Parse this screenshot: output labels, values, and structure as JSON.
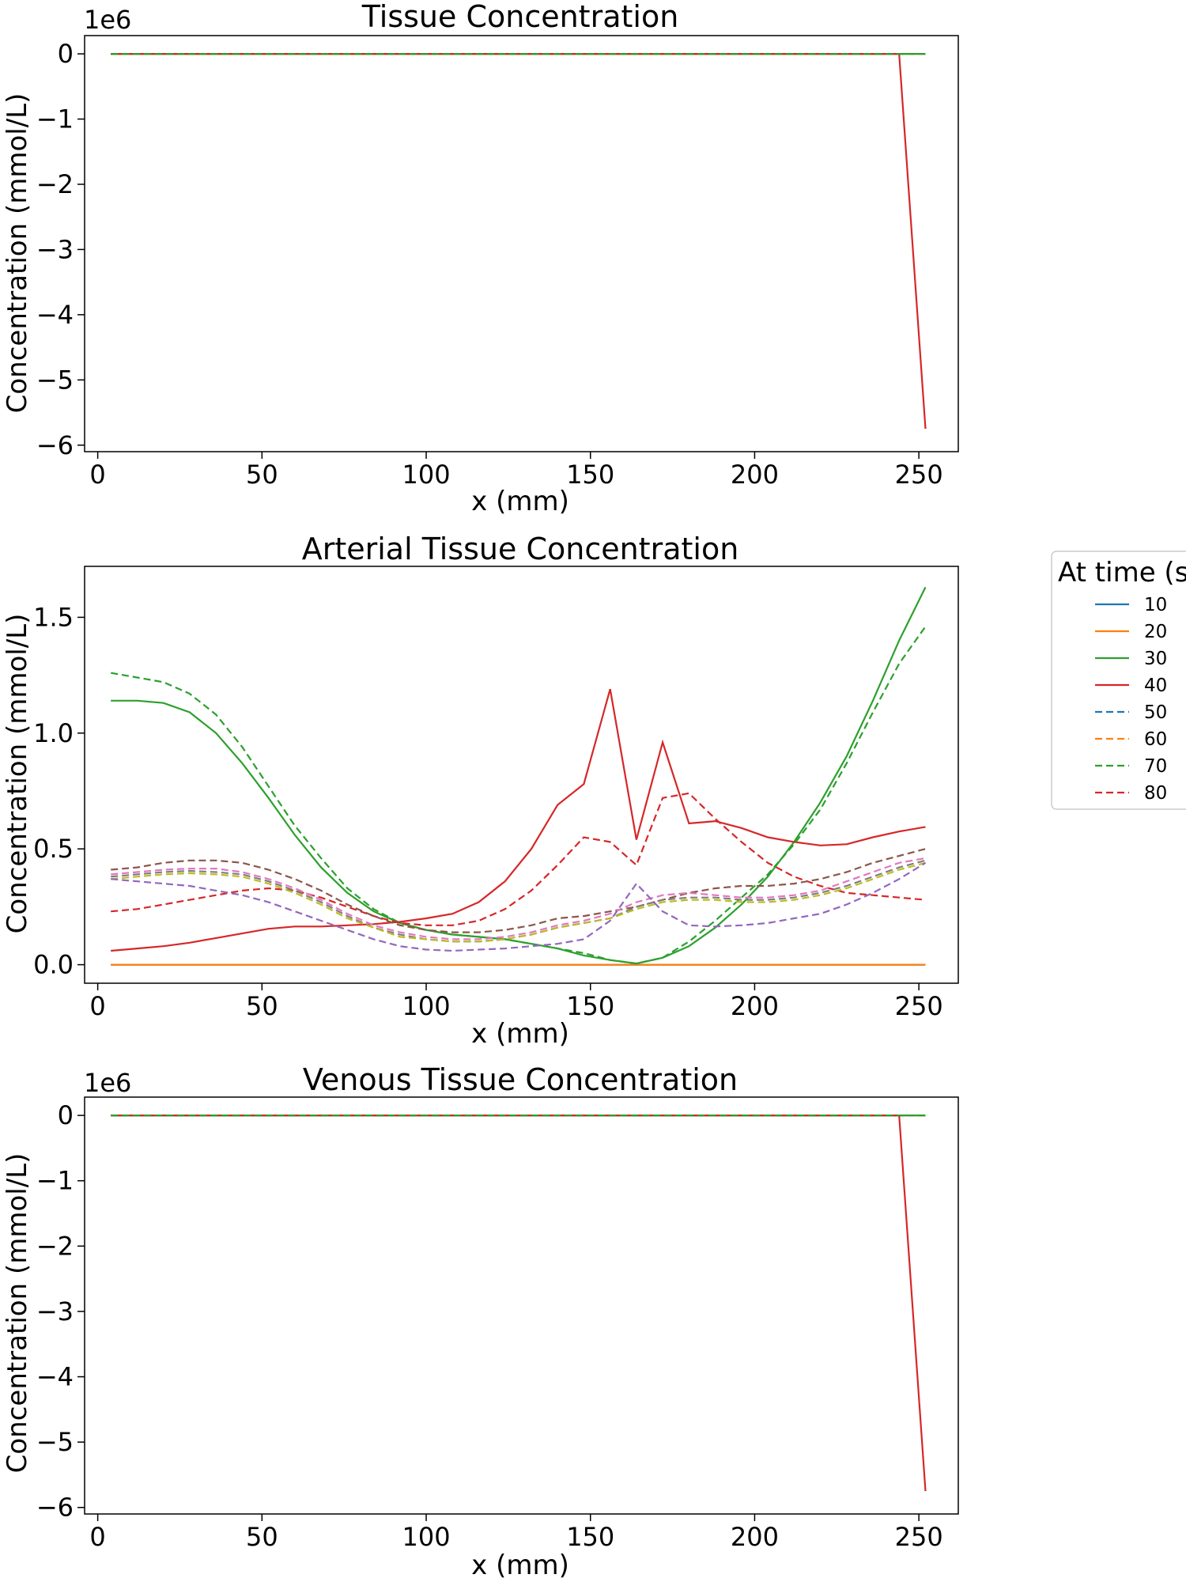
{
  "legend": {
    "title": "At time (s",
    "entries": [
      {
        "label": "10",
        "color": "#1f77b4",
        "dash": "solid"
      },
      {
        "label": "20",
        "color": "#ff7f0e",
        "dash": "solid"
      },
      {
        "label": "30",
        "color": "#2ca02c",
        "dash": "solid"
      },
      {
        "label": "40",
        "color": "#d62728",
        "dash": "solid"
      },
      {
        "label": "50",
        "color": "#1f77b4",
        "dash": "dashed"
      },
      {
        "label": "60",
        "color": "#ff7f0e",
        "dash": "dashed"
      },
      {
        "label": "70",
        "color": "#2ca02c",
        "dash": "dashed"
      },
      {
        "label": "80",
        "color": "#d62728",
        "dash": "dashed"
      }
    ]
  },
  "chart_data": [
    {
      "type": "line",
      "title": "Tissue Concentration",
      "xlabel": "x (mm)",
      "ylabel": "Concentration (mmol/L)",
      "offset_label": "1e6",
      "xlim": [
        -4,
        262
      ],
      "ylim": [
        -6.1,
        0.28
      ],
      "xticks": [
        0,
        50,
        100,
        150,
        200,
        250
      ],
      "yticks": [
        0,
        -1,
        -2,
        -3,
        -4,
        -5,
        -6
      ],
      "ytick_labels": [
        "0",
        "−1",
        "−2",
        "−3",
        "−4",
        "−5",
        "−6"
      ],
      "series": [
        {
          "name": "10",
          "color": "#1f77b4",
          "dash": "solid",
          "x": [
            4,
            244
          ],
          "y": [
            0,
            0
          ]
        },
        {
          "name": "20",
          "color": "#ff7f0e",
          "dash": "solid",
          "x": [
            4,
            244,
            252
          ],
          "y": [
            0,
            0,
            0
          ]
        },
        {
          "name": "30",
          "color": "#2ca02c",
          "dash": "solid",
          "x": [
            4,
            244,
            252
          ],
          "y": [
            0,
            0,
            0
          ]
        },
        {
          "name": "40",
          "color": "#d62728",
          "dash": "solid",
          "x": [
            4,
            244,
            252
          ],
          "y": [
            0,
            0,
            -5.75
          ]
        },
        {
          "name": "70",
          "color": "#2ca02c",
          "dash": "dashed",
          "x": [
            4,
            252
          ],
          "y": [
            0,
            0
          ]
        }
      ]
    },
    {
      "type": "line",
      "title": "Arterial Tissue Concentration",
      "xlabel": "x (mm)",
      "ylabel": "Concentration (mmol/L)",
      "offset_label": "",
      "xlim": [
        -4,
        262
      ],
      "ylim": [
        -0.08,
        1.72
      ],
      "xticks": [
        0,
        50,
        100,
        150,
        200,
        250
      ],
      "yticks": [
        0,
        0.5,
        1.0,
        1.5
      ],
      "ytick_labels": [
        "0.0",
        "0.5",
        "1.0",
        "1.5"
      ],
      "series": [
        {
          "name": "10",
          "color": "#1f77b4",
          "dash": "solid",
          "x": [
            4,
            252
          ],
          "y": [
            0,
            0
          ]
        },
        {
          "name": "20",
          "color": "#ff7f0e",
          "dash": "solid",
          "x": [
            4,
            252
          ],
          "y": [
            0,
            0
          ]
        },
        {
          "name": "30",
          "color": "#2ca02c",
          "dash": "solid",
          "x": [
            4,
            12,
            20,
            28,
            36,
            44,
            52,
            60,
            68,
            76,
            84,
            92,
            100,
            108,
            116,
            124,
            132,
            140,
            148,
            156,
            164,
            172,
            180,
            188,
            196,
            204,
            212,
            220,
            228,
            236,
            244,
            252
          ],
          "y": [
            1.14,
            1.14,
            1.13,
            1.09,
            1.0,
            0.87,
            0.72,
            0.56,
            0.42,
            0.31,
            0.23,
            0.18,
            0.15,
            0.13,
            0.12,
            0.11,
            0.09,
            0.07,
            0.04,
            0.02,
            0.005,
            0.03,
            0.08,
            0.16,
            0.26,
            0.38,
            0.53,
            0.7,
            0.9,
            1.14,
            1.4,
            1.63
          ]
        },
        {
          "name": "40",
          "color": "#d62728",
          "dash": "solid",
          "x": [
            4,
            12,
            20,
            28,
            36,
            44,
            52,
            60,
            68,
            76,
            84,
            92,
            100,
            108,
            116,
            124,
            132,
            140,
            148,
            156,
            164,
            172,
            180,
            188,
            196,
            204,
            212,
            220,
            228,
            236,
            244,
            252
          ],
          "y": [
            0.06,
            0.07,
            0.08,
            0.095,
            0.115,
            0.135,
            0.155,
            0.165,
            0.165,
            0.17,
            0.175,
            0.185,
            0.2,
            0.22,
            0.27,
            0.36,
            0.5,
            0.69,
            0.78,
            1.19,
            0.54,
            0.96,
            0.61,
            0.62,
            0.59,
            0.55,
            0.53,
            0.515,
            0.52,
            0.55,
            0.575,
            0.595
          ]
        },
        {
          "name": "70",
          "color": "#2ca02c",
          "dash": "dashed",
          "x": [
            4,
            12,
            20,
            28,
            36,
            44,
            52,
            60,
            68,
            76,
            84,
            92,
            100,
            108,
            116,
            124,
            132,
            140,
            148,
            156,
            164,
            172,
            180,
            188,
            196,
            204,
            212,
            220,
            228,
            236,
            244,
            252
          ],
          "y": [
            1.26,
            1.24,
            1.22,
            1.17,
            1.08,
            0.94,
            0.77,
            0.6,
            0.46,
            0.33,
            0.24,
            0.18,
            0.15,
            0.13,
            0.12,
            0.11,
            0.09,
            0.07,
            0.05,
            0.02,
            0.005,
            0.03,
            0.1,
            0.19,
            0.29,
            0.39,
            0.52,
            0.67,
            0.87,
            1.09,
            1.3,
            1.46
          ]
        },
        {
          "name": "80",
          "color": "#d62728",
          "dash": "dashed",
          "x": [
            4,
            12,
            20,
            28,
            36,
            44,
            52,
            60,
            68,
            76,
            84,
            92,
            100,
            108,
            116,
            124,
            132,
            140,
            148,
            156,
            164,
            172,
            180,
            188,
            196,
            204,
            212,
            220,
            228,
            236,
            244,
            252
          ],
          "y": [
            0.23,
            0.24,
            0.26,
            0.28,
            0.3,
            0.32,
            0.33,
            0.32,
            0.29,
            0.25,
            0.21,
            0.18,
            0.17,
            0.17,
            0.19,
            0.24,
            0.32,
            0.43,
            0.55,
            0.53,
            0.43,
            0.72,
            0.74,
            0.63,
            0.53,
            0.44,
            0.38,
            0.34,
            0.31,
            0.3,
            0.29,
            0.28
          ]
        },
        {
          "name": "",
          "color": "#8c564b",
          "dash": "dashed",
          "x": [
            4,
            12,
            20,
            28,
            36,
            44,
            52,
            60,
            68,
            76,
            84,
            92,
            100,
            108,
            116,
            124,
            132,
            140,
            148,
            156,
            164,
            172,
            180,
            188,
            196,
            204,
            212,
            220,
            228,
            236,
            244,
            252
          ],
          "y": [
            0.41,
            0.42,
            0.44,
            0.45,
            0.45,
            0.44,
            0.41,
            0.37,
            0.32,
            0.26,
            0.21,
            0.17,
            0.15,
            0.14,
            0.14,
            0.15,
            0.17,
            0.2,
            0.21,
            0.23,
            0.25,
            0.28,
            0.31,
            0.33,
            0.34,
            0.34,
            0.35,
            0.37,
            0.4,
            0.44,
            0.47,
            0.5
          ]
        },
        {
          "name": "",
          "color": "#e377c2",
          "dash": "dashed",
          "x": [
            4,
            12,
            20,
            28,
            36,
            44,
            52,
            60,
            68,
            76,
            84,
            92,
            100,
            108,
            116,
            124,
            132,
            140,
            148,
            156,
            164,
            172,
            180,
            188,
            196,
            204,
            212,
            220,
            228,
            236,
            244,
            252
          ],
          "y": [
            0.39,
            0.4,
            0.41,
            0.415,
            0.415,
            0.4,
            0.37,
            0.33,
            0.28,
            0.22,
            0.17,
            0.14,
            0.12,
            0.11,
            0.11,
            0.12,
            0.14,
            0.17,
            0.19,
            0.22,
            0.27,
            0.3,
            0.31,
            0.3,
            0.29,
            0.29,
            0.3,
            0.32,
            0.36,
            0.4,
            0.44,
            0.46
          ]
        },
        {
          "name": "",
          "color": "#7f7f7f",
          "dash": "dashed",
          "x": [
            4,
            12,
            20,
            28,
            36,
            44,
            52,
            60,
            68,
            76,
            84,
            92,
            100,
            108,
            116,
            124,
            132,
            140,
            148,
            156,
            164,
            172,
            180,
            188,
            196,
            204,
            212,
            220,
            228,
            236,
            244,
            252
          ],
          "y": [
            0.38,
            0.39,
            0.4,
            0.405,
            0.4,
            0.39,
            0.36,
            0.32,
            0.27,
            0.21,
            0.16,
            0.13,
            0.11,
            0.1,
            0.1,
            0.11,
            0.13,
            0.16,
            0.18,
            0.2,
            0.25,
            0.28,
            0.29,
            0.29,
            0.28,
            0.28,
            0.29,
            0.31,
            0.34,
            0.38,
            0.42,
            0.45
          ]
        },
        {
          "name": "",
          "color": "#bcbd22",
          "dash": "dashed",
          "x": [
            4,
            12,
            20,
            28,
            36,
            44,
            52,
            60,
            68,
            76,
            84,
            92,
            100,
            108,
            116,
            124,
            132,
            140,
            148,
            156,
            164,
            172,
            180,
            188,
            196,
            204,
            212,
            220,
            228,
            236,
            244,
            252
          ],
          "y": [
            0.37,
            0.38,
            0.39,
            0.395,
            0.39,
            0.38,
            0.35,
            0.31,
            0.26,
            0.2,
            0.16,
            0.12,
            0.11,
            0.1,
            0.1,
            0.11,
            0.13,
            0.16,
            0.18,
            0.2,
            0.24,
            0.27,
            0.28,
            0.28,
            0.27,
            0.27,
            0.28,
            0.3,
            0.33,
            0.37,
            0.41,
            0.44
          ]
        },
        {
          "name": "",
          "color": "#9467bd",
          "dash": "dashed",
          "x": [
            4,
            12,
            20,
            28,
            36,
            44,
            52,
            60,
            68,
            76,
            84,
            92,
            100,
            108,
            116,
            124,
            132,
            140,
            148,
            156,
            164,
            172,
            180,
            188,
            196,
            204,
            212,
            220,
            228,
            236,
            244,
            252
          ],
          "y": [
            0.37,
            0.36,
            0.35,
            0.34,
            0.32,
            0.3,
            0.27,
            0.23,
            0.19,
            0.15,
            0.11,
            0.08,
            0.065,
            0.06,
            0.065,
            0.07,
            0.08,
            0.09,
            0.11,
            0.19,
            0.35,
            0.23,
            0.17,
            0.165,
            0.17,
            0.18,
            0.2,
            0.22,
            0.26,
            0.31,
            0.37,
            0.44
          ]
        }
      ]
    },
    {
      "type": "line",
      "title": "Venous Tissue Concentration",
      "xlabel": "x (mm)",
      "ylabel": "Concentration (mmol/L)",
      "offset_label": "1e6",
      "xlim": [
        -4,
        262
      ],
      "ylim": [
        -6.1,
        0.28
      ],
      "xticks": [
        0,
        50,
        100,
        150,
        200,
        250
      ],
      "yticks": [
        0,
        -1,
        -2,
        -3,
        -4,
        -5,
        -6
      ],
      "ytick_labels": [
        "0",
        "−1",
        "−2",
        "−3",
        "−4",
        "−5",
        "−6"
      ],
      "series": [
        {
          "name": "10",
          "color": "#1f77b4",
          "dash": "solid",
          "x": [
            4,
            244
          ],
          "y": [
            0,
            0
          ]
        },
        {
          "name": "20",
          "color": "#ff7f0e",
          "dash": "solid",
          "x": [
            4,
            244,
            252
          ],
          "y": [
            0,
            0,
            0
          ]
        },
        {
          "name": "30",
          "color": "#2ca02c",
          "dash": "solid",
          "x": [
            4,
            244,
            252
          ],
          "y": [
            0,
            0,
            0
          ]
        },
        {
          "name": "40",
          "color": "#d62728",
          "dash": "solid",
          "x": [
            4,
            244,
            252
          ],
          "y": [
            0,
            0,
            -5.75
          ]
        },
        {
          "name": "70",
          "color": "#2ca02c",
          "dash": "dashed",
          "x": [
            4,
            252
          ],
          "y": [
            0,
            0
          ]
        }
      ]
    }
  ]
}
